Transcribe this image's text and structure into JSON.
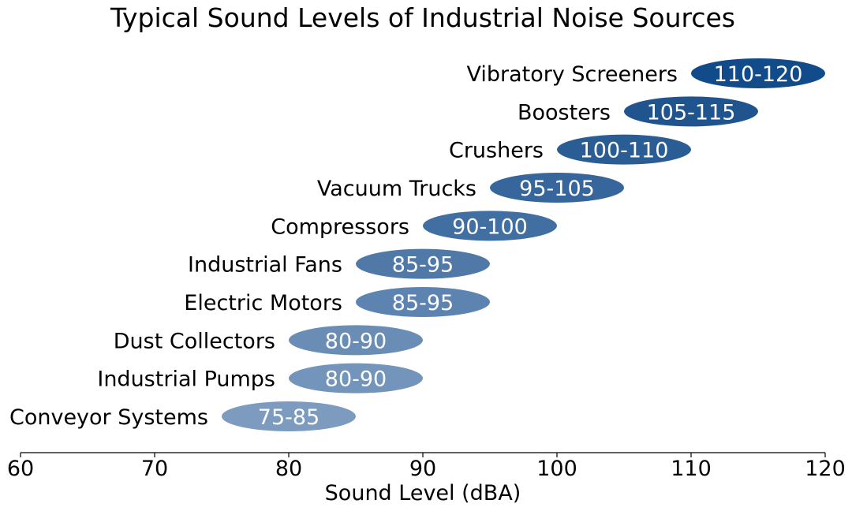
{
  "chart_data": {
    "type": "bar",
    "orientation": "horizontal-range",
    "title": "Typical Sound Levels of Industrial Noise Sources",
    "xlabel": "Sound Level (dBA)",
    "ylabel": "",
    "xlim": [
      60,
      120
    ],
    "xticks": [
      60,
      70,
      80,
      90,
      100,
      110,
      120
    ],
    "grid": false,
    "items": [
      {
        "category": "Conveyor Systems",
        "low": 75,
        "high": 85,
        "label": "75-85",
        "color": "#7c9bbf"
      },
      {
        "category": "Industrial Pumps",
        "low": 80,
        "high": 90,
        "label": "80-90",
        "color": "#7394bb"
      },
      {
        "category": "Dust Collectors",
        "low": 80,
        "high": 90,
        "label": "80-90",
        "color": "#6a8db6"
      },
      {
        "category": "Electric Motors",
        "low": 85,
        "high": 95,
        "label": "85-95",
        "color": "#5d84b0"
      },
      {
        "category": "Industrial Fans",
        "low": 85,
        "high": 95,
        "label": "85-95",
        "color": "#5079a8"
      },
      {
        "category": "Compressors",
        "low": 90,
        "high": 100,
        "label": "90-100",
        "color": "#426fa1"
      },
      {
        "category": "Vacuum Trucks",
        "low": 95,
        "high": 105,
        "label": "95-105",
        "color": "#36669b"
      },
      {
        "category": "Crushers",
        "low": 100,
        "high": 110,
        "label": "100-110",
        "color": "#2b5d95"
      },
      {
        "category": "Boosters",
        "low": 105,
        "high": 115,
        "label": "105-115",
        "color": "#1f548f"
      },
      {
        "category": "Vibratory Screeners",
        "low": 110,
        "high": 120,
        "label": "110-120",
        "color": "#124b89"
      }
    ]
  }
}
